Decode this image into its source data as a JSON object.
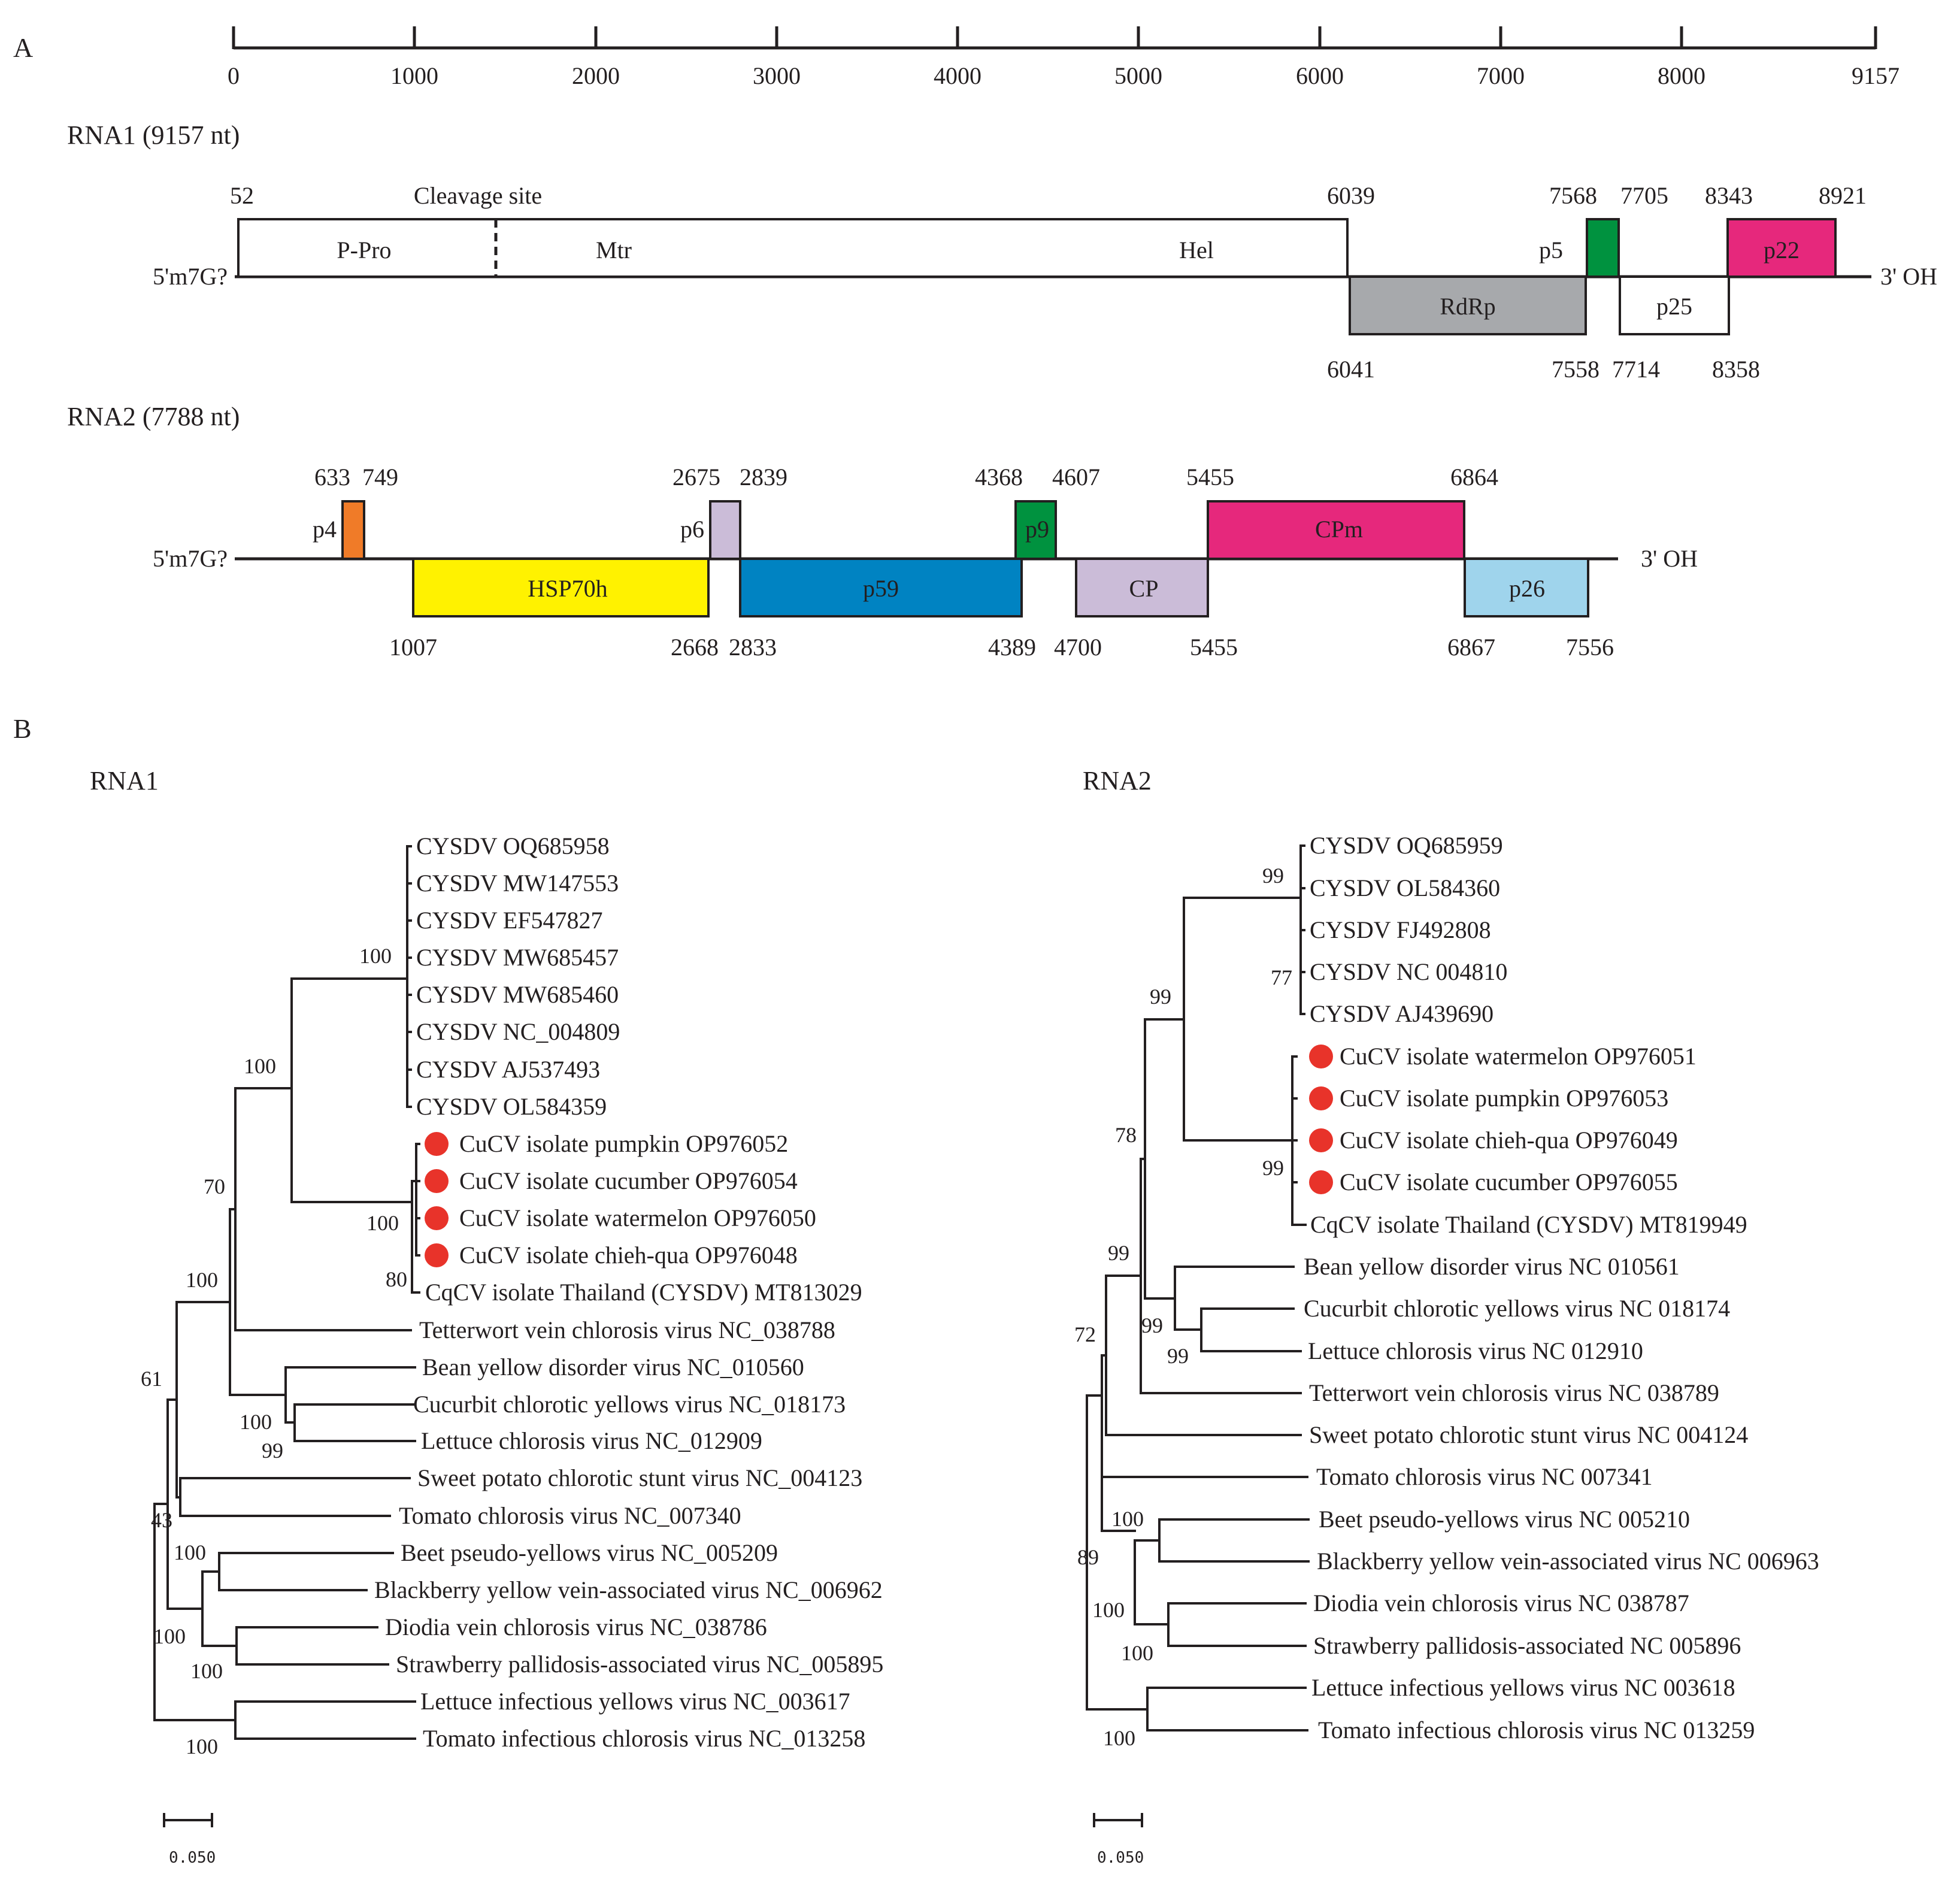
{
  "panels": {
    "a": "A",
    "b": "B"
  },
  "axis": {
    "ticks": [
      "0",
      "1000",
      "2000",
      "3000",
      "4000",
      "5000",
      "6000",
      "7000",
      "8000",
      "9157"
    ]
  },
  "rna1": {
    "title": "RNA1 (9157 nt)",
    "five_prime": "5'm7G?",
    "three_prime": "3' OH",
    "cleavage": "Cleavage site",
    "orfs": [
      {
        "labels": [
          "P-Pro",
          "Mtr",
          "Hel"
        ],
        "color": "#ffffff"
      },
      {
        "label": "RdRp",
        "color": "#a7a9ac"
      },
      {
        "label": "p5",
        "color": "#00923f"
      },
      {
        "label": "p25",
        "color": "#ffffff"
      },
      {
        "label": "p22",
        "color": "#e6287c"
      }
    ],
    "coords_top": [
      "52",
      "6039",
      "7568",
      "7705",
      "8343",
      "8921"
    ],
    "coords_bottom": [
      "6041",
      "7558",
      "7714",
      "8358"
    ]
  },
  "rna2": {
    "title": "RNA2 (7788 nt)",
    "five_prime": "5'm7G?",
    "three_prime": "3' OH",
    "orfs": [
      {
        "label": "p4",
        "color": "#f07b28"
      },
      {
        "label": "HSP70h",
        "color": "#fff200"
      },
      {
        "label": "p6",
        "color": "#cbbcd8"
      },
      {
        "label": "p59",
        "color": "#0083c2"
      },
      {
        "label": "p9",
        "color": "#00923f"
      },
      {
        "label": "CP",
        "color": "#cbbcd8"
      },
      {
        "label": "CPm",
        "color": "#e6287c"
      },
      {
        "label": "p26",
        "color": "#9fd4ec"
      }
    ],
    "coords_top": [
      "633",
      "749",
      "2675",
      "2839",
      "4368",
      "4607",
      "5455",
      "6864"
    ],
    "coords_bottom": [
      "1007",
      "2668",
      "2833",
      "4389",
      "4700",
      "5455",
      "6867",
      "7556"
    ]
  },
  "trees": {
    "rna1": {
      "title": "RNA1",
      "taxa": [
        "CYSDV OQ685958",
        "CYSDV MW147553",
        "CYSDV EF547827",
        "CYSDV MW685457",
        "CYSDV MW685460",
        "CYSDV NC_004809",
        "CYSDV AJ537493",
        "CYSDV OL584359",
        "CuCV isolate pumpkin OP976052",
        "CuCV isolate cucumber OP976054",
        "CuCV isolate watermelon OP976050",
        "CuCV isolate chieh-qua OP976048",
        "CqCV isolate Thailand (CYSDV) MT813029",
        "Tetterwort vein chlorosis virus NC_038788",
        "Bean yellow disorder virus NC_010560",
        "Cucurbit chlorotic yellows virus NC_018173",
        "Lettuce chlorosis virus NC_012909",
        "Sweet potato chlorotic stunt virus NC_004123",
        "Tomato chlorosis virus NC_007340",
        "Beet pseudo-yellows virus NC_005209",
        "Blackberry yellow vein-associated virus NC_006962",
        "Diodia vein chlorosis virus NC_038786",
        "Strawberry pallidosis-associated virus NC_005895",
        "Lettuce infectious yellows virus NC_003617",
        "Tomato infectious chlorosis virus NC_013258"
      ],
      "bootstraps": [
        "100",
        "100",
        "70",
        "100",
        "80",
        "100",
        "61",
        "100",
        "99",
        "43",
        "100",
        "100",
        "100",
        "100"
      ],
      "scale": "0.050"
    },
    "rna2": {
      "title": "RNA2",
      "taxa": [
        "CYSDV OQ685959",
        "CYSDV OL584360",
        "CYSDV FJ492808",
        "CYSDV NC 004810",
        "CYSDV AJ439690",
        "CuCV isolate watermelon OP976051",
        "CuCV isolate pumpkin OP976053",
        "CuCV isolate chieh-qua OP976049",
        "CuCV isolate cucumber OP976055",
        "CqCV isolate Thailand (CYSDV) MT819949",
        "Bean yellow disorder virus NC 010561",
        "Cucurbit chlorotic yellows virus NC 018174",
        "Lettuce chlorosis virus NC 012910",
        "Tetterwort vein chlorosis virus NC 038789",
        "Sweet potato chlorotic stunt virus NC 004124",
        "Tomato chlorosis virus NC 007341",
        "Beet pseudo-yellows virus NC 005210",
        "Blackberry yellow vein-associated virus NC 006963",
        "Diodia vein chlorosis virus NC 038787",
        "Strawberry pallidosis-associated NC 005896",
        "Lettuce infectious yellows virus NC 003618",
        "Tomato infectious chlorosis virus NC 013259"
      ],
      "bootstraps": [
        "99",
        "77",
        "99",
        "99",
        "78",
        "99",
        "99",
        "99",
        "72",
        "100",
        "89",
        "100",
        "100",
        "100"
      ],
      "scale": "0.050"
    }
  },
  "highlight_color": "#e8332a"
}
